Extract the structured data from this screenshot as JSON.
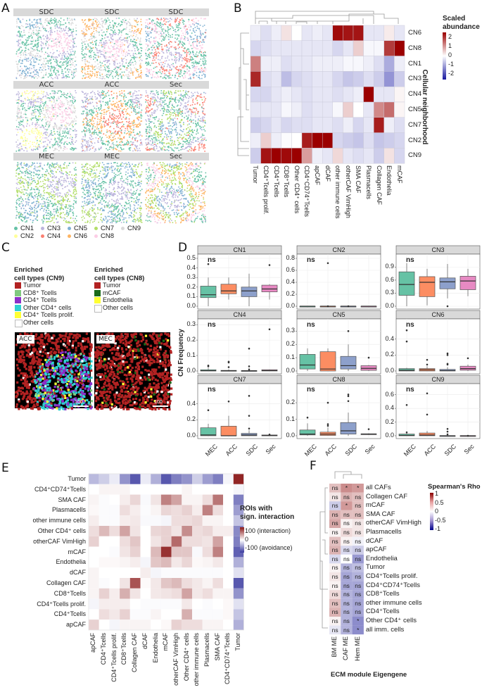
{
  "panels": {
    "A": "A",
    "B": "B",
    "C": "C",
    "D": "D",
    "E": "E",
    "F": "F"
  },
  "panelA": {
    "facets": [
      "SDC",
      "SDC",
      "SDC",
      "ACC",
      "ACC",
      "Sec",
      "MEC",
      "MEC",
      "Sec"
    ],
    "legend": [
      {
        "label": "CN1",
        "color": "#66c2a5"
      },
      {
        "label": "CN2",
        "color": "#ffff99"
      },
      {
        "label": "CN3",
        "color": "#bcb5dc"
      },
      {
        "label": "CN4",
        "color": "#fb8072"
      },
      {
        "label": "CN5",
        "color": "#80b1d3"
      },
      {
        "label": "CN6",
        "color": "#fdb462"
      },
      {
        "label": "CN7",
        "color": "#b3de69"
      },
      {
        "label": "CN8",
        "color": "#fccde5"
      },
      {
        "label": "CN9",
        "color": "#d9d9d9"
      }
    ]
  },
  "panelB": {
    "legend_title_1": "Scaled",
    "legend_title_2": "abundance",
    "legend_ticks": [
      "2",
      "1",
      "0",
      "-1",
      "-2"
    ],
    "row_axis_title": "Cellular neighborhood",
    "rows": [
      "CN6",
      "CN8",
      "CN1",
      "CN3",
      "CN4",
      "CN5",
      "CN7",
      "CN2",
      "CN9"
    ],
    "cols": [
      "Tumor",
      "CD4⁺Tcells prolif.",
      "CD4⁺Tcells",
      "CD8⁺Tcells",
      "Other CD4⁺ cells",
      "CD4⁺CD74⁺Tcells",
      "apCAF",
      "dCAF",
      "other immune cells",
      "otherCAF VimHigh",
      "SMA CAF",
      "Plasmacells",
      "Collagen CAF",
      "Endothelia",
      "mCAF"
    ],
    "values": [
      [
        -0.2,
        -0.4,
        -0.2,
        0.3,
        0,
        -0.3,
        -0.2,
        -0.3,
        2.5,
        2.4,
        2.4,
        -0.3,
        -0.3,
        0.2,
        -0.3
      ],
      [
        -0.5,
        -0.4,
        -0.3,
        -0.3,
        -0.3,
        -0.3,
        -0.3,
        -0.3,
        -0.5,
        -0.3,
        0.5,
        -0.1,
        -0.1,
        2.0,
        2.6
      ],
      [
        1.3,
        -0.2,
        -0.2,
        -0.4,
        -0.3,
        -0.3,
        -0.2,
        -0.2,
        -0.2,
        -0.1,
        -0.1,
        -0.2,
        -0.4,
        -1.0,
        -0.2
      ],
      [
        2.2,
        -0.4,
        -0.3,
        -0.8,
        -0.5,
        -0.4,
        -0.3,
        -0.3,
        -0.5,
        -0.7,
        -0.6,
        -0.4,
        -0.6,
        -1.3,
        -0.6
      ],
      [
        -0.5,
        -0.5,
        -0.3,
        -0.2,
        -0.3,
        -0.4,
        -0.3,
        -0.3,
        -0.4,
        -0.3,
        -0.2,
        2.6,
        -0.3,
        -0.3,
        0.1
      ],
      [
        -0.3,
        -0.3,
        -0.3,
        -0.1,
        -0.2,
        -0.4,
        -0.3,
        -0.3,
        -0.1,
        0.5,
        0,
        -0.3,
        1.2,
        1.5,
        0.1
      ],
      [
        -0.6,
        -0.5,
        -0.3,
        -0.5,
        -0.4,
        -0.4,
        -0.3,
        -0.3,
        -0.4,
        -0.2,
        -0.5,
        -0.3,
        2.3,
        -0.2,
        -0.4
      ],
      [
        -0.2,
        0.5,
        -0.2,
        -0.05,
        0,
        2.3,
        2.6,
        2.6,
        -0.5,
        -0.6,
        -0.7,
        -0.4,
        -0.7,
        -0.6,
        -0.5
      ],
      [
        -0.6,
        2.4,
        2.6,
        2.5,
        2.6,
        1.0,
        -0.2,
        -0.3,
        0.4,
        -0.3,
        -0.4,
        -0.3,
        -0.6,
        0.3,
        -0.5
      ]
    ]
  },
  "panelC": {
    "leg1_title_1": "Enriched",
    "leg1_title_2": "cell types (CN9)",
    "leg1": [
      {
        "label": "Tumor",
        "color": "#b22222"
      },
      {
        "label": "CD8⁺ Tcells",
        "color": "#7fc97f"
      },
      {
        "label": "CD4⁺ Tcells",
        "color": "#8b2fc9"
      },
      {
        "label": "Other CD4⁺ cells",
        "color": "#2ed1d1"
      },
      {
        "label": "CD4⁺ Tcells prolif.",
        "color": "#ffff33"
      },
      {
        "label": "Other cells",
        "color": "#ffffff"
      }
    ],
    "leg2_title_1": "Enriched",
    "leg2_title_2": "cell types (CN8)",
    "leg2": [
      {
        "label": "Tumor",
        "color": "#b22222"
      },
      {
        "label": "mCAF",
        "color": "#1a6b1a"
      },
      {
        "label": "Endothelia",
        "color": "#ffff33"
      },
      {
        "label": "Other cells",
        "color": "#ffffff"
      }
    ],
    "img1_label": "ACC",
    "img2_label": "MEC",
    "scale_label": "100"
  },
  "panelD": {
    "ylabel": "CN Frequency",
    "groups": [
      "MEC",
      "ACC",
      "SDC",
      "Sec"
    ],
    "group_colors": [
      "#66c2a5",
      "#fc8d62",
      "#8da0cb",
      "#e78ac3"
    ],
    "sig_label": "ns",
    "facets": [
      {
        "name": "CN1",
        "ymax": 0.5,
        "ticks": [
          "0.0",
          "0.1",
          "0.2",
          "0.3",
          "0.4",
          "0.5"
        ],
        "tickvals": [
          0,
          0.1,
          0.2,
          0.3,
          0.4,
          0.5
        ],
        "boxes": [
          [
            0,
            0.09,
            0.12,
            0.21,
            0.3
          ],
          [
            0.07,
            0.13,
            0.16,
            0.23,
            0.3
          ],
          [
            0,
            0.1,
            0.16,
            0.2,
            0.34
          ],
          [
            0.07,
            0.15,
            0.18,
            0.22,
            0.23
          ]
        ],
        "outliers": [
          [
            0.44
          ],
          [],
          [],
          [
            0.43
          ]
        ]
      },
      {
        "name": "CN2",
        "ymax": 0.8,
        "ticks": [
          "0.0",
          "0.2",
          "0.4",
          "0.6",
          "0.8"
        ],
        "tickvals": [
          0,
          0.2,
          0.4,
          0.6,
          0.8
        ],
        "boxes": [
          [
            0,
            0,
            0,
            0,
            0
          ],
          [
            0,
            0,
            0,
            0,
            0
          ],
          [
            0,
            0,
            0,
            0,
            0
          ],
          [
            0,
            0,
            0,
            0,
            0
          ]
        ],
        "outliers": [
          [],
          [
            0.72,
            0
          ],
          [
            0
          ],
          []
        ]
      },
      {
        "name": "CN3",
        "ymax": 1.1,
        "ticks": [
          "0.0",
          "0.3",
          "0.6",
          "0.9"
        ],
        "tickvals": [
          0,
          0.3,
          0.6,
          0.9
        ],
        "boxes": [
          [
            0,
            0.25,
            0.5,
            0.79,
            0.99
          ],
          [
            0.02,
            0.22,
            0.55,
            0.68,
            0.86
          ],
          [
            0.18,
            0.4,
            0.56,
            0.65,
            0.97
          ],
          [
            0.23,
            0.38,
            0.58,
            0.69,
            0.86
          ]
        ],
        "outliers": [
          [],
          [],
          [
            0
          ],
          []
        ]
      },
      {
        "name": "CN4",
        "ymax": 0.31,
        "ticks": [
          "0.0",
          "0.1",
          "0.2",
          "0.3"
        ],
        "tickvals": [
          0,
          0.1,
          0.2,
          0.3
        ],
        "boxes": [
          [
            0,
            0,
            0.002,
            0.008,
            0.02
          ],
          [
            0,
            0,
            0.002,
            0.004,
            0.01
          ],
          [
            0,
            0,
            0.001,
            0.003,
            0.01
          ],
          [
            0,
            0,
            0.003,
            0.008,
            0.01
          ]
        ],
        "outliers": [
          [
            0.03,
            0.035
          ],
          [
            0.025,
            0.055,
            0.06
          ],
          [
            0.01,
            0.03,
            0.145
          ],
          [
            0.27
          ]
        ]
      },
      {
        "name": "CN5",
        "ymax": 0.36,
        "ticks": [
          "0.0",
          "0.1",
          "0.2",
          "0.3"
        ],
        "tickvals": [
          0,
          0.1,
          0.2,
          0.3
        ],
        "boxes": [
          [
            0,
            0.015,
            0.045,
            0.125,
            0.17
          ],
          [
            0,
            0,
            0.015,
            0.145,
            0.17
          ],
          [
            0,
            0.015,
            0.04,
            0.11,
            0.2
          ],
          [
            0,
            0.005,
            0.02,
            0.04,
            0.045
          ]
        ],
        "outliers": [
          [],
          [],
          [
            0.3
          ],
          [
            0.1
          ]
        ]
      },
      {
        "name": "CN6",
        "ymax": 0.6,
        "ticks": [
          "0.0",
          "0.2",
          "0.4"
        ],
        "tickvals": [
          0,
          0.2,
          0.4
        ],
        "boxes": [
          [
            0,
            0,
            0.01,
            0.03,
            0.04
          ],
          [
            0,
            0,
            0.015,
            0.03,
            0.06
          ],
          [
            0,
            0,
            0.005,
            0.02,
            0.05
          ],
          [
            0,
            0.01,
            0.03,
            0.06,
            0.08
          ]
        ],
        "outliers": [
          [
            0.37,
            0.51
          ],
          [
            0.08,
            0.14
          ],
          [
            0.08,
            0.09,
            0.2,
            0.22
          ],
          [
            0.16
          ]
        ]
      },
      {
        "name": "CN7",
        "ymax": 0.6,
        "ticks": [
          "0.0",
          "0.2",
          "0.4"
        ],
        "tickvals": [
          0,
          0.2,
          0.4
        ],
        "boxes": [
          [
            0,
            0,
            0.01,
            0.1,
            0.15
          ],
          [
            0,
            0,
            0,
            0.12,
            0.25
          ],
          [
            0,
            0,
            0.01,
            0.03,
            0.07
          ],
          [
            0,
            0,
            0.003,
            0.01,
            0.02
          ]
        ],
        "outliers": [
          [
            0.32
          ],
          [
            0.43
          ],
          [
            0.09,
            0.25,
            0.5
          ],
          [
            0.015
          ]
        ]
      },
      {
        "name": "CN8",
        "ymax": 0.29,
        "ticks": [
          "0.0",
          "0.1",
          "0.2"
        ],
        "tickvals": [
          0,
          0.1,
          0.2
        ],
        "boxes": [
          [
            0,
            0.005,
            0.01,
            0.035,
            0.075
          ],
          [
            0,
            0.002,
            0.01,
            0.022,
            0.05
          ],
          [
            0,
            0.01,
            0.03,
            0.08,
            0.14
          ],
          [
            0.005,
            0.007,
            0.01,
            0.012,
            0.015
          ]
        ],
        "outliers": [
          [
            0.11
          ],
          [
            0.06,
            0.07,
            0.2
          ],
          [
            0.21,
            0.24,
            0.25
          ],
          [
            0.04
          ]
        ]
      },
      {
        "name": "CN9",
        "ymax": 0.7,
        "ticks": [
          "0.0",
          "0.2",
          "0.4",
          "0.6"
        ],
        "tickvals": [
          0,
          0.2,
          0.4,
          0.6
        ],
        "boxes": [
          [
            0,
            0,
            0.005,
            0.025,
            0.04
          ],
          [
            0,
            0,
            0.01,
            0.04,
            0.07
          ],
          [
            0,
            0,
            0,
            0.002,
            0.01
          ],
          [
            0,
            0,
            0,
            0.002,
            0.005
          ]
        ],
        "outliers": [
          [
            0.05,
            0.45
          ],
          [
            0.31,
            0.62
          ],
          [
            0.02,
            0.06,
            0.1
          ],
          [
            0
          ]
        ]
      }
    ]
  },
  "panelE": {
    "legend_title_1": "ROIs with",
    "legend_title_2": "sign. interaction",
    "legend_ticks": [
      "100 (interaction)",
      "0",
      "-100 (avoidance)"
    ],
    "rows": [
      "Tumor",
      "CD4⁺CD74⁺Tcells",
      "SMA CAF",
      "Plasmacells",
      "other immune cells",
      "Other CD4⁺ cells",
      "otherCAF VimHigh",
      "mCAF",
      "Endothelia",
      "dCAF",
      "Collagen CAF",
      "CD8⁺Tcells",
      "CD4⁺Tcells prolif.",
      "CD4⁺Tcells",
      "apCAF"
    ],
    "cols": [
      "apCAF",
      "CD4⁺Tcells",
      "CD4⁺Tcells prolif.",
      "CD8⁺Tcells",
      "Collagen CAF",
      "dCAF",
      "Endothelia",
      "mCAF",
      "otherCAF VimHigh",
      "Other CD4⁺ cells",
      "other immune cells",
      "Plasmacells",
      "SMA CAF",
      "CD4⁺CD74⁺Tcells",
      "Tumor"
    ],
    "values": [
      [
        -35,
        -25,
        -10,
        -55,
        -85,
        -10,
        -40,
        -85,
        -65,
        -55,
        -25,
        -50,
        -65,
        -5,
        95
      ],
      [
        0,
        5,
        5,
        5,
        0,
        0,
        0,
        0,
        0,
        5,
        0,
        0,
        0,
        0,
        -5
      ],
      [
        5,
        -2,
        0,
        8,
        18,
        -3,
        12,
        55,
        40,
        5,
        5,
        15,
        60,
        0,
        -65
      ],
      [
        3,
        -2,
        -2,
        15,
        8,
        -2,
        5,
        18,
        15,
        20,
        8,
        55,
        15,
        0,
        -50
      ],
      [
        8,
        -2,
        -2,
        8,
        10,
        -3,
        -3,
        -5,
        15,
        15,
        18,
        5,
        5,
        0,
        -30
      ],
      [
        15,
        30,
        15,
        40,
        12,
        0,
        18,
        20,
        12,
        50,
        15,
        18,
        8,
        8,
        -60
      ],
      [
        20,
        0,
        0,
        15,
        25,
        0,
        12,
        20,
        65,
        15,
        15,
        12,
        40,
        0,
        -65
      ],
      [
        0,
        0,
        -2,
        12,
        20,
        0,
        30,
        90,
        25,
        25,
        -3,
        15,
        55,
        0,
        -80
      ],
      [
        0,
        3,
        3,
        5,
        8,
        -5,
        25,
        30,
        10,
        18,
        3,
        5,
        10,
        0,
        -40
      ],
      [
        5,
        0,
        0,
        0,
        0,
        8,
        -5,
        -2,
        -2,
        -2,
        -2,
        -2,
        -2,
        0,
        -15
      ],
      [
        5,
        -2,
        0,
        12,
        75,
        2,
        10,
        25,
        30,
        15,
        10,
        5,
        15,
        0,
        -85
      ],
      [
        5,
        20,
        8,
        35,
        12,
        0,
        10,
        12,
        15,
        40,
        10,
        15,
        5,
        5,
        -55
      ],
      [
        -5,
        8,
        8,
        8,
        0,
        -2,
        -2,
        -2,
        -2,
        10,
        0,
        -2,
        0,
        3,
        -15
      ],
      [
        0,
        15,
        10,
        20,
        -2,
        -2,
        5,
        0,
        0,
        35,
        -2,
        -2,
        -2,
        3,
        -30
      ],
      [
        20,
        0,
        -5,
        5,
        5,
        5,
        0,
        3,
        20,
        15,
        15,
        5,
        5,
        0,
        -40
      ]
    ]
  },
  "panelF": {
    "legend_title": "Spearman's Rho",
    "legend_ticks": [
      "1",
      "0.5",
      "0",
      "-0.5",
      "-1"
    ],
    "xlabel": "ECM module Eigengene",
    "cols": [
      "BM ME",
      "CAF ME",
      "Hem ME"
    ],
    "rows": [
      "all CAFs",
      "Collagen CAF",
      "mCAF",
      "SMA CAF",
      "otherCAF VimHigh",
      "Plasmacells",
      "dCAF",
      "apCAF",
      "Endothelia",
      "Tumor",
      "CD4⁺Tcells prolif.",
      "CD4⁺CD74⁺Tcells",
      "CD8⁺Tcells",
      "other immune cells",
      "CD4⁺Tcells",
      "Other CD4⁺ cells",
      "all imm. cells"
    ],
    "labels": [
      [
        "ns",
        "*",
        "*"
      ],
      [
        "ns",
        "ns",
        "ns"
      ],
      [
        "ns",
        "*",
        "ns"
      ],
      [
        "ns",
        "ns",
        "ns"
      ],
      [
        "ns",
        "ns",
        "ns"
      ],
      [
        "ns",
        "ns",
        "ns"
      ],
      [
        "ns",
        "ns",
        "ns"
      ],
      [
        "ns",
        "ns",
        "ns"
      ],
      [
        "ns",
        "ns",
        "ns"
      ],
      [
        "ns",
        "ns",
        "ns"
      ],
      [
        "ns",
        "ns",
        "ns"
      ],
      [
        "ns",
        "ns",
        "ns"
      ],
      [
        "ns",
        "ns",
        "ns"
      ],
      [
        "ns",
        "ns",
        "ns"
      ],
      [
        "ns",
        "ns",
        "ns"
      ],
      [
        "ns",
        "ns",
        "*"
      ],
      [
        "ns",
        "ns",
        "*"
      ]
    ],
    "values": [
      [
        0.25,
        0.45,
        0.4
      ],
      [
        0.1,
        0.3,
        0.25
      ],
      [
        -0.2,
        0.4,
        0.25
      ],
      [
        0.3,
        0.25,
        0.25
      ],
      [
        0.35,
        0.05,
        0.1
      ],
      [
        0.05,
        0.15,
        0.1
      ],
      [
        0.25,
        0.05,
        -0.05
      ],
      [
        0.3,
        -0.15,
        -0.2
      ],
      [
        -0.15,
        0,
        -0.4
      ],
      [
        0.05,
        -0.3,
        -0.25
      ],
      [
        0.1,
        -0.35,
        -0.3
      ],
      [
        0.05,
        -0.35,
        -0.35
      ],
      [
        0.15,
        -0.3,
        -0.35
      ],
      [
        0.25,
        -0.3,
        -0.35
      ],
      [
        0.3,
        -0.3,
        -0.35
      ],
      [
        0.05,
        -0.3,
        -0.45
      ],
      [
        -0.1,
        -0.3,
        -0.45
      ]
    ]
  }
}
